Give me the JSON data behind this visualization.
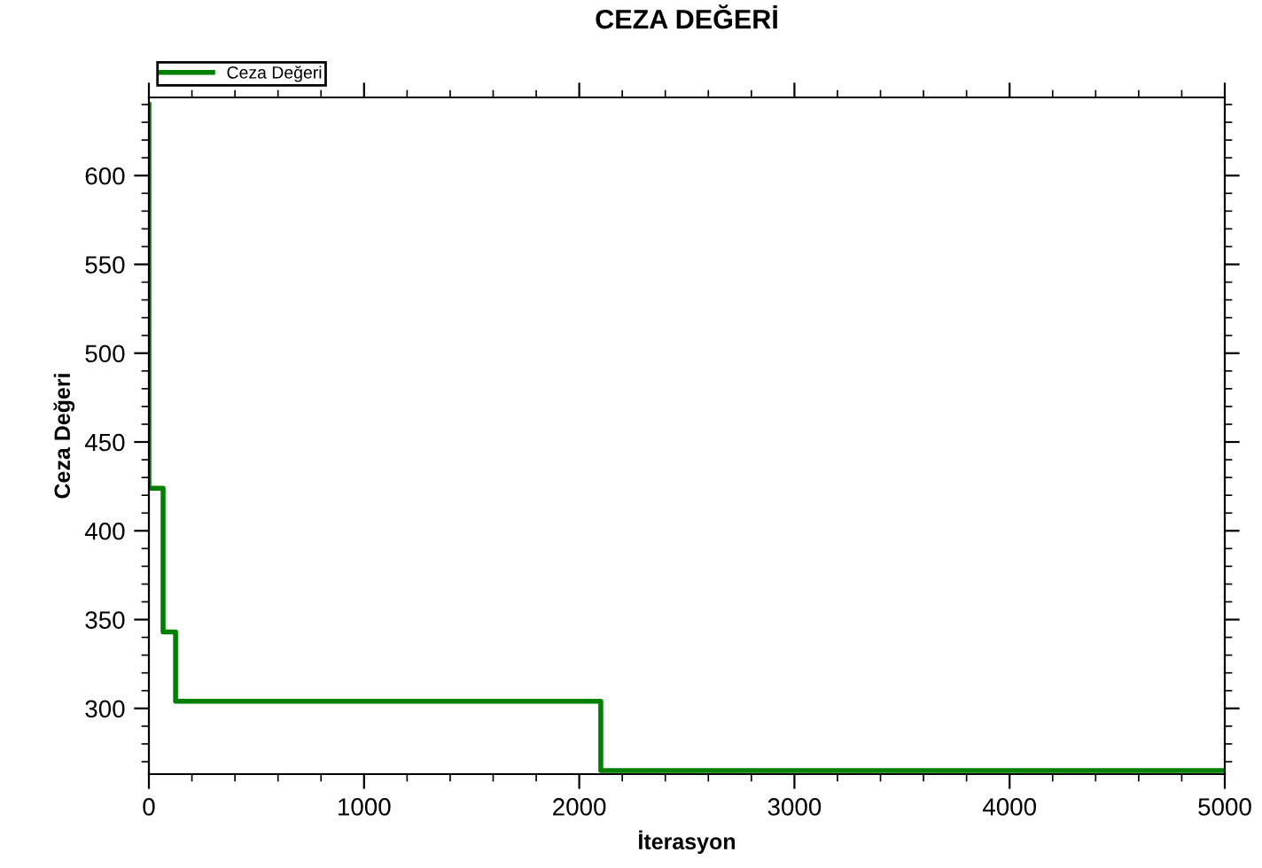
{
  "chart_data": {
    "type": "step",
    "title": "CEZA DEĞERİ",
    "xlabel": "İterasyon",
    "ylabel": "Ceza Değeri",
    "series": [
      {
        "name": "Ceza Değeri",
        "color": "#008000",
        "x": [
          0,
          0,
          66,
          124,
          2100,
          5000
        ],
        "values": [
          640,
          424,
          343,
          304,
          265,
          265
        ]
      }
    ],
    "xlim": [
      0,
      5000
    ],
    "xticks": [
      0,
      1000,
      2000,
      3000,
      4000,
      5000
    ],
    "ylim": [
      263,
      644
    ],
    "yticks": [
      300,
      350,
      400,
      450,
      500,
      550,
      600
    ],
    "grid": false,
    "legend": "top left",
    "line_style": "solid",
    "marker": "none"
  }
}
